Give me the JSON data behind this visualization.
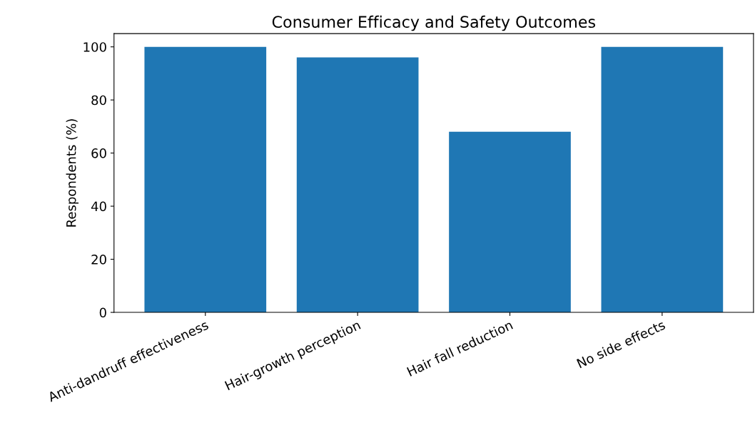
{
  "chart_data": {
    "type": "bar",
    "title": "Consumer Efficacy and Safety Outcomes",
    "ylabel": "Respondents (%)",
    "categories": [
      "Anti-dandruff effectiveness",
      "Hair-growth perception",
      "Hair fall reduction",
      "No side effects"
    ],
    "values": [
      100,
      96,
      68,
      100
    ],
    "color": "#1f77b4",
    "ylim": [
      0,
      105
    ],
    "yticks": [
      0,
      20,
      40,
      60,
      80,
      100
    ],
    "grid": false
  }
}
